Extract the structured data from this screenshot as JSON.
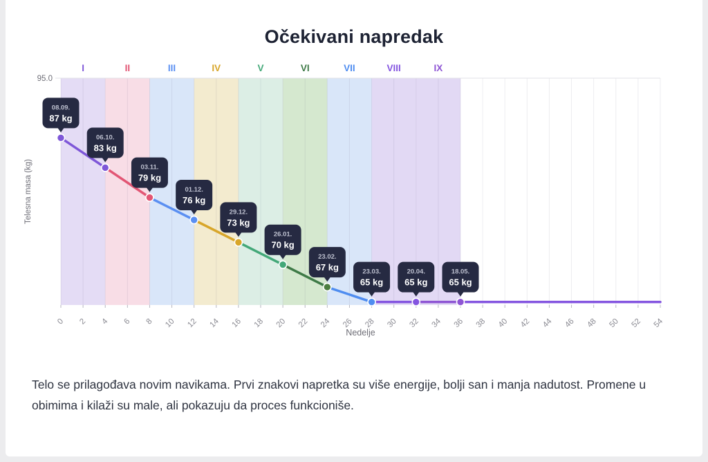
{
  "title": "Očekivani napredak",
  "description": "Telo se prilagođava novim navikama. Prvi znakovi napretka su više energije, bolji san i manja nadutost. Promene u obimima i kilaži su male, ali pokazuju da proces funkcioniše.",
  "chart_data": {
    "type": "line",
    "title": "Očekivani napredak",
    "xlabel": "Nedelje",
    "ylabel": "Telesna masa (kg)",
    "xlim": [
      0,
      54
    ],
    "ylim": [
      64.6,
      95
    ],
    "grid": true,
    "x_ticks": [
      0,
      2,
      4,
      6,
      8,
      10,
      12,
      14,
      16,
      18,
      20,
      22,
      24,
      26,
      28,
      30,
      32,
      34,
      36,
      38,
      40,
      42,
      44,
      46,
      48,
      50,
      52,
      54
    ],
    "y_ticks": [
      {
        "value": 95,
        "label": "95.0"
      }
    ],
    "points": [
      {
        "week": 0,
        "kg": 87,
        "date": "08.09.",
        "weight_label": "87 kg",
        "dot_color": "#7e57d8"
      },
      {
        "week": 4,
        "kg": 83,
        "date": "06.10.",
        "weight_label": "83 kg",
        "dot_color": "#7e57d8"
      },
      {
        "week": 8,
        "kg": 79,
        "date": "03.11.",
        "weight_label": "79 kg",
        "dot_color": "#e25574"
      },
      {
        "week": 12,
        "kg": 76,
        "date": "01.12.",
        "weight_label": "76 kg",
        "dot_color": "#5a8ff2"
      },
      {
        "week": 16,
        "kg": 73,
        "date": "29.12.",
        "weight_label": "73 kg",
        "dot_color": "#d8a62a"
      },
      {
        "week": 20,
        "kg": 70,
        "date": "26.01.",
        "weight_label": "70 kg",
        "dot_color": "#43a878"
      },
      {
        "week": 24,
        "kg": 67,
        "date": "23.02.",
        "weight_label": "67 kg",
        "dot_color": "#4b7d3f"
      },
      {
        "week": 28,
        "kg": 65,
        "date": "23.03.",
        "weight_label": "65 kg",
        "dot_color": "#4f8df0"
      },
      {
        "week": 32,
        "kg": 65,
        "date": "20.04.",
        "weight_label": "65 kg",
        "dot_color": "#8455e0"
      },
      {
        "week": 36,
        "kg": 65,
        "date": "18.05.",
        "weight_label": "65 kg",
        "dot_color": "#8e55d4"
      }
    ],
    "phases": [
      {
        "numeral": "I",
        "start": 0,
        "end": 4,
        "color": "#7e57d8",
        "band_color": "#e4dcf5"
      },
      {
        "numeral": "II",
        "start": 4,
        "end": 8,
        "color": "#e25574",
        "band_color": "#f8dde6"
      },
      {
        "numeral": "III",
        "start": 8,
        "end": 12,
        "color": "#5a8ff2",
        "band_color": "#d9e6f9"
      },
      {
        "numeral": "IV",
        "start": 12,
        "end": 16,
        "color": "#d8a62a",
        "band_color": "#f3ebcf"
      },
      {
        "numeral": "V",
        "start": 16,
        "end": 20,
        "color": "#43a878",
        "band_color": "#dceee5"
      },
      {
        "numeral": "VI",
        "start": 20,
        "end": 24,
        "color": "#3e7a47",
        "band_color": "#d5e8cf"
      },
      {
        "numeral": "VII",
        "start": 24,
        "end": 28,
        "color": "#4f8df0",
        "band_color": "#d9e6f9"
      },
      {
        "numeral": "VIII",
        "start": 28,
        "end": 32,
        "color": "#8455e0",
        "band_color": "#e2d9f4"
      },
      {
        "numeral": "IX",
        "start": 32,
        "end": 36,
        "color": "#8e55d4",
        "band_color": "#e2d9f4"
      }
    ],
    "tail": {
      "to_week": 54,
      "color": "#8455e0"
    },
    "tooltip": {
      "background": "#262a42",
      "date_color": "#bdc0cf",
      "value_color": "#ffffff"
    },
    "legend": "none"
  }
}
